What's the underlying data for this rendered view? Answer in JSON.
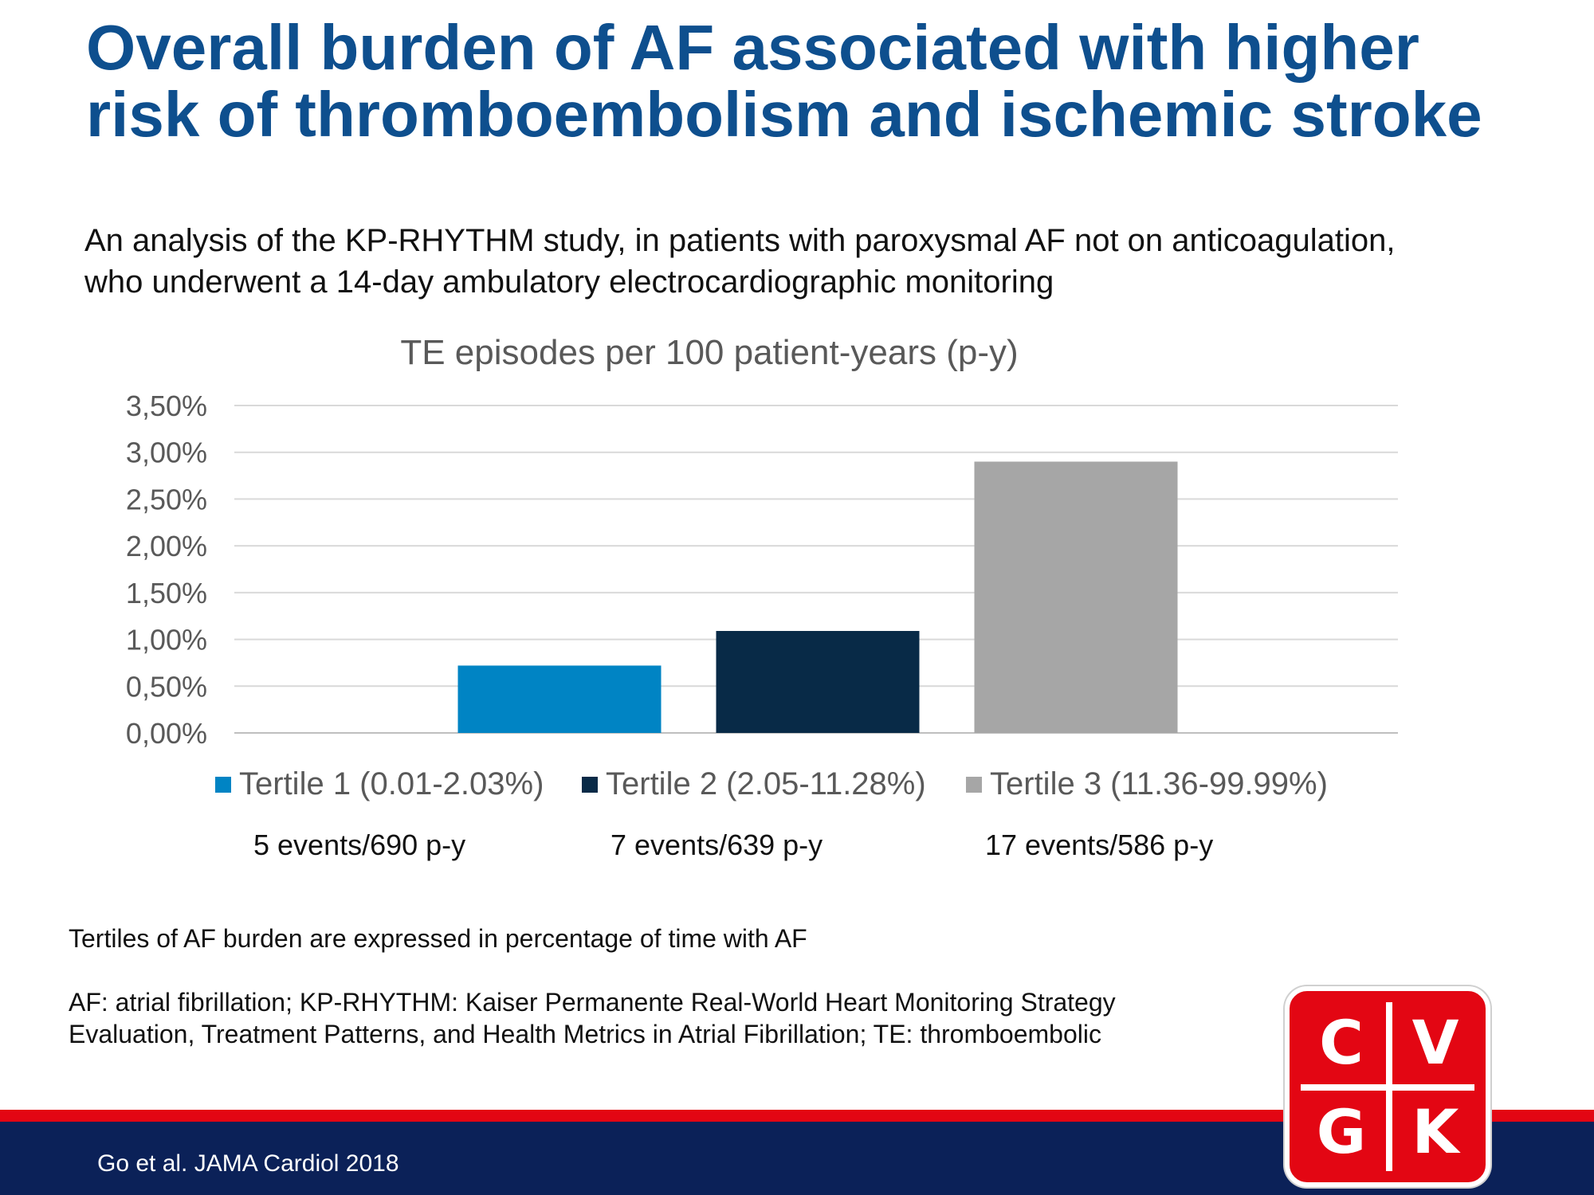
{
  "slide": {
    "title": "Overall burden of AF associated with higher risk of thromboembolism and ischemic stroke",
    "subtitle_line1": "An analysis of the KP-RHYTHM  study, in patients with paroxysmal AF not on anticoagulation,",
    "subtitle_line2": "who underwent  a 14-day ambulatory  electrocardiographic monitoring"
  },
  "chart_data": {
    "type": "bar",
    "title": "TE episodes per 100 patient-years  (p-y)",
    "xlabel": "",
    "ylabel": "",
    "ylim": [
      0,
      3.5
    ],
    "y_ticks": [
      0,
      0.5,
      1.0,
      1.5,
      2.0,
      2.5,
      3.0,
      3.5
    ],
    "y_tick_labels": [
      "0,00%",
      "0,50%",
      "1,00%",
      "1,50%",
      "2,00%",
      "2,50%",
      "3,00%",
      "3,50%"
    ],
    "grid": true,
    "legend_position": "bottom",
    "series": [
      {
        "name": "Tertile 1 (0.01-2.03%)",
        "value": 0.72,
        "color": "#0084c4"
      },
      {
        "name": "Tertile 2 (2.05-11.28%)",
        "value": 1.09,
        "color": "#082a47"
      },
      {
        "name": "Tertile 3 (11.36-99.99%)",
        "value": 2.9,
        "color": "#a6a6a6"
      }
    ],
    "annotations": [
      "5 events/690 p-y",
      "7 events/639 p-y",
      "17 events/586 p-y"
    ]
  },
  "notes": {
    "tertiles": "Tertiles of AF burden are expressed in percentage of time with AF",
    "abbrev_line1": "AF: atrial fibrillation; KP-RHYTHM:  Kaiser Permanente Real-World Heart Monitoring Strategy",
    "abbrev_line2": "Evaluation, Treatment  Patterns, and Health Metrics in Atrial Fibrillation; TE: thromboembolic"
  },
  "footer": {
    "citation": "Go et al. JAMA Cardiol 2018"
  },
  "logo": {
    "letters": [
      "C",
      "V",
      "G",
      "K"
    ]
  }
}
